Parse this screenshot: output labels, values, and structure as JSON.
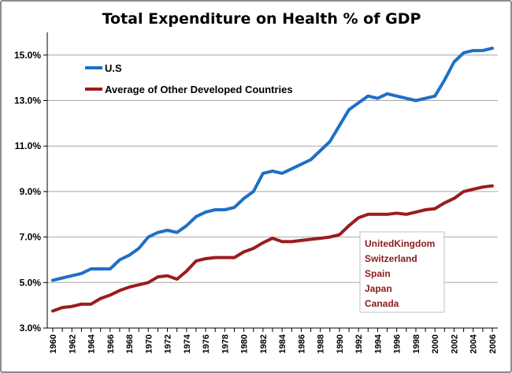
{
  "chart_data": {
    "type": "line",
    "title": "Total Expenditure on Health % of GDP",
    "xlabel": "",
    "ylabel": "",
    "ylim": [
      3,
      16
    ],
    "xlim": [
      1960,
      2006
    ],
    "y_ticks": [
      3,
      5,
      7,
      9,
      11,
      13,
      15
    ],
    "y_tick_labels": [
      "3.0%",
      "5.0%",
      "7.0%",
      "9.0%",
      "11.0%",
      "13.0%",
      "15.0%"
    ],
    "x_tick_labels": [
      "1960",
      "1962",
      "1964",
      "1966",
      "1968",
      "1970",
      "1972",
      "1974",
      "1976",
      "1978",
      "1980",
      "1982",
      "1984",
      "1986",
      "1988",
      "1990",
      "1992",
      "1994",
      "1996",
      "1998",
      "2000",
      "2002",
      "2004",
      "2006"
    ],
    "grid": "horizontal",
    "legend_position": "top-left",
    "x": [
      1960,
      1961,
      1962,
      1963,
      1964,
      1965,
      1966,
      1967,
      1968,
      1969,
      1970,
      1971,
      1972,
      1973,
      1974,
      1975,
      1976,
      1977,
      1978,
      1979,
      1980,
      1981,
      1982,
      1983,
      1984,
      1985,
      1986,
      1987,
      1988,
      1989,
      1990,
      1991,
      1992,
      1993,
      1994,
      1995,
      1996,
      1997,
      1998,
      1999,
      2000,
      2001,
      2002,
      2003,
      2004,
      2005,
      2006
    ],
    "series": [
      {
        "name": "U.S",
        "color": "#1f6fc5",
        "values": [
          5.1,
          5.2,
          5.3,
          5.4,
          5.6,
          5.6,
          5.6,
          6.0,
          6.2,
          6.5,
          7.0,
          7.2,
          7.3,
          7.2,
          7.5,
          7.9,
          8.1,
          8.2,
          8.2,
          8.3,
          8.7,
          9.0,
          9.8,
          9.9,
          9.8,
          10.0,
          10.2,
          10.4,
          10.8,
          11.2,
          11.9,
          12.6,
          12.9,
          13.2,
          13.1,
          13.3,
          13.2,
          13.1,
          13.0,
          13.1,
          13.2,
          13.9,
          14.7,
          15.1,
          15.2,
          15.2,
          15.3
        ]
      },
      {
        "name": "Average of Other Developed Countries",
        "color": "#9b1c1c",
        "values": [
          3.75,
          3.9,
          3.95,
          4.05,
          4.05,
          4.3,
          4.45,
          4.65,
          4.8,
          4.9,
          5.0,
          5.25,
          5.3,
          5.15,
          5.5,
          5.95,
          6.05,
          6.1,
          6.1,
          6.1,
          6.35,
          6.5,
          6.75,
          6.95,
          6.8,
          6.8,
          6.85,
          6.9,
          6.95,
          7.0,
          7.1,
          7.5,
          7.85,
          8.0,
          8.0,
          8.0,
          8.05,
          8.0,
          8.1,
          8.2,
          8.25,
          8.5,
          8.7,
          9.0,
          9.1,
          9.2,
          9.25
        ]
      }
    ],
    "annotation_box": {
      "items": [
        "UnitedKingdom",
        "Switzerland",
        "Spain",
        "Japan",
        "Canada"
      ],
      "border_color": "#c0c0c0",
      "text_color": "#8b1a1a"
    }
  },
  "colors": {
    "axis": "#000000",
    "grid": "#a6a6a6",
    "frame": "#8c8c8c"
  }
}
